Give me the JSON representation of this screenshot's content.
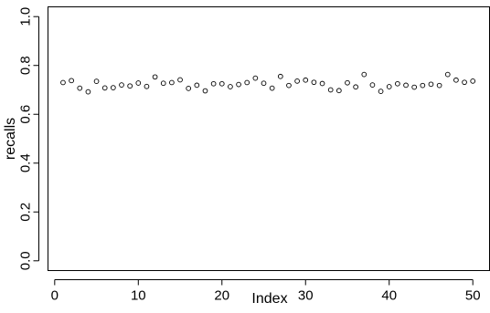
{
  "chart_data": {
    "type": "scatter",
    "title": "",
    "xlabel": "Index",
    "ylabel": "recalls",
    "xlim": [
      -0.8,
      52
    ],
    "ylim": [
      -0.04,
      1.04
    ],
    "xticks": [
      0,
      10,
      20,
      30,
      40,
      50
    ],
    "xtick_labels": [
      "0",
      "10",
      "20",
      "30",
      "40",
      "50"
    ],
    "yticks": [
      0.0,
      0.2,
      0.4,
      0.6,
      0.8,
      1.0
    ],
    "ytick_labels": [
      "0.0",
      "0.2",
      "0.4",
      "0.6",
      "0.8",
      "1.0"
    ],
    "grid": false,
    "marker": "open-circle",
    "series": [
      {
        "x": [
          1,
          2,
          3,
          4,
          5,
          6,
          7,
          8,
          9,
          10,
          11,
          12,
          13,
          14,
          15,
          16,
          17,
          18,
          19,
          20,
          21,
          22,
          23,
          24,
          25,
          26,
          27,
          28,
          29,
          30,
          31,
          32,
          33,
          34,
          35,
          36,
          37,
          38,
          39,
          40,
          41,
          42,
          43,
          44,
          45,
          46,
          47,
          48,
          49,
          50
        ],
        "y": [
          0.73,
          0.738,
          0.707,
          0.692,
          0.735,
          0.708,
          0.709,
          0.72,
          0.716,
          0.728,
          0.714,
          0.753,
          0.727,
          0.73,
          0.741,
          0.706,
          0.719,
          0.696,
          0.725,
          0.725,
          0.713,
          0.722,
          0.73,
          0.748,
          0.727,
          0.707,
          0.755,
          0.718,
          0.736,
          0.74,
          0.731,
          0.726,
          0.7,
          0.697,
          0.729,
          0.712,
          0.763,
          0.72,
          0.694,
          0.713,
          0.725,
          0.719,
          0.711,
          0.718,
          0.723,
          0.718,
          0.763,
          0.74,
          0.731,
          0.736
        ]
      }
    ]
  }
}
